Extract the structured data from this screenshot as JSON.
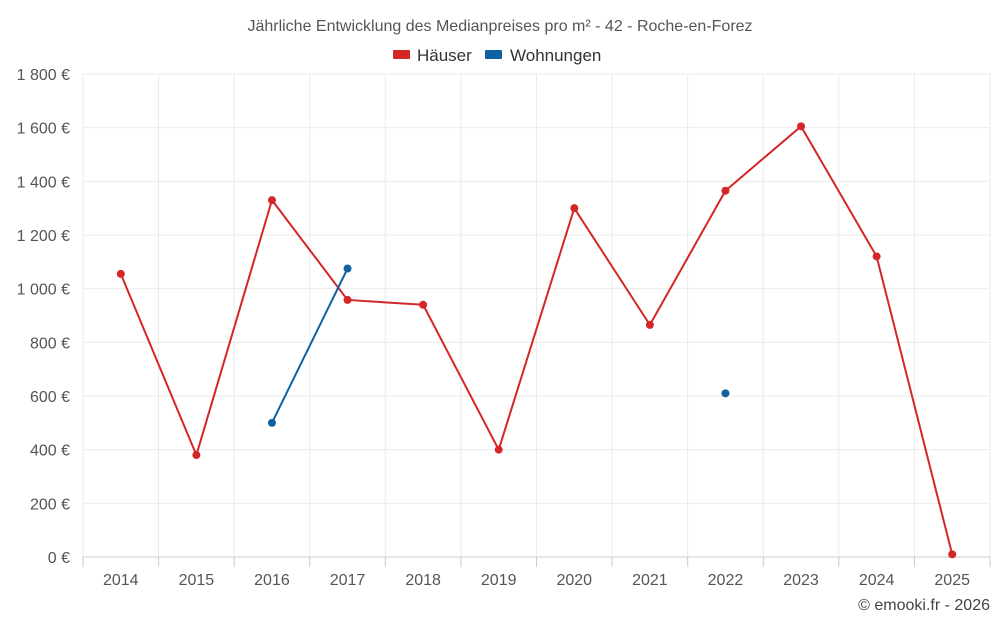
{
  "chart_data": {
    "type": "line",
    "title": "Jährliche Entwicklung des Medianpreises pro m² - 42 - Roche-en-Forez",
    "categories": [
      "2014",
      "2015",
      "2016",
      "2017",
      "2018",
      "2019",
      "2020",
      "2021",
      "2022",
      "2023",
      "2024",
      "2025"
    ],
    "series": [
      {
        "name": "Häuser",
        "color": "#d42527",
        "values": [
          1055,
          380,
          1330,
          958,
          940,
          400,
          1300,
          865,
          1365,
          1605,
          1120,
          10
        ]
      },
      {
        "name": "Wohnungen",
        "color": "#0f62a0",
        "values": [
          null,
          null,
          500,
          1075,
          null,
          null,
          null,
          null,
          610,
          null,
          null,
          null
        ]
      }
    ],
    "ylim": [
      0,
      1800
    ],
    "yticks": [
      0,
      200,
      400,
      600,
      800,
      1000,
      1200,
      1400,
      1600,
      1800
    ],
    "ytick_labels": [
      "0 €",
      "200 €",
      "400 €",
      "600 €",
      "800 €",
      "1 000 €",
      "1 200 €",
      "1 400 €",
      "1 600 €",
      "1 800 €"
    ],
    "xlabel": "",
    "ylabel": "",
    "grid": true,
    "legend_position": "top-center"
  },
  "credit": "© emooki.fr - 2026"
}
